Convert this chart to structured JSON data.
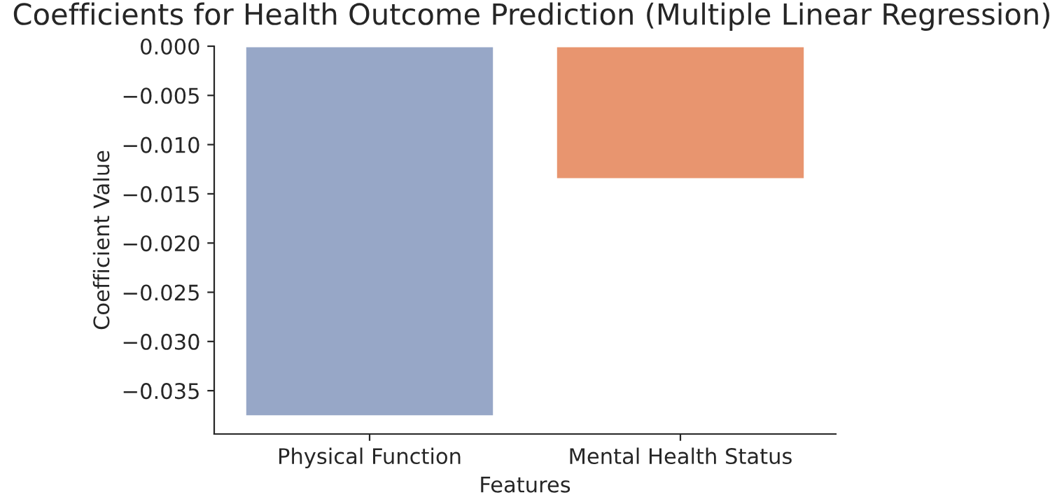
{
  "chart_data": {
    "type": "bar",
    "title": "Coefficients for Health Outcome Prediction (Multiple Linear Regression)",
    "xlabel": "Features",
    "ylabel": "Coefficient Value",
    "categories": [
      "Physical Function",
      "Mental Health Status"
    ],
    "values": [
      -0.0376,
      -0.0135
    ],
    "colors": [
      "#97a7c7",
      "#e8956f"
    ],
    "ylim": [
      -0.0394,
      0
    ],
    "yticks": [
      {
        "value": 0,
        "label": "0.000"
      },
      {
        "value": -0.005,
        "label": "−0.005"
      },
      {
        "value": -0.01,
        "label": "−0.010"
      },
      {
        "value": -0.015,
        "label": "−0.015"
      },
      {
        "value": -0.02,
        "label": "−0.020"
      },
      {
        "value": -0.025,
        "label": "−0.025"
      },
      {
        "value": -0.03,
        "label": "−0.030"
      },
      {
        "value": -0.035,
        "label": "−0.035"
      }
    ],
    "grid": false
  }
}
